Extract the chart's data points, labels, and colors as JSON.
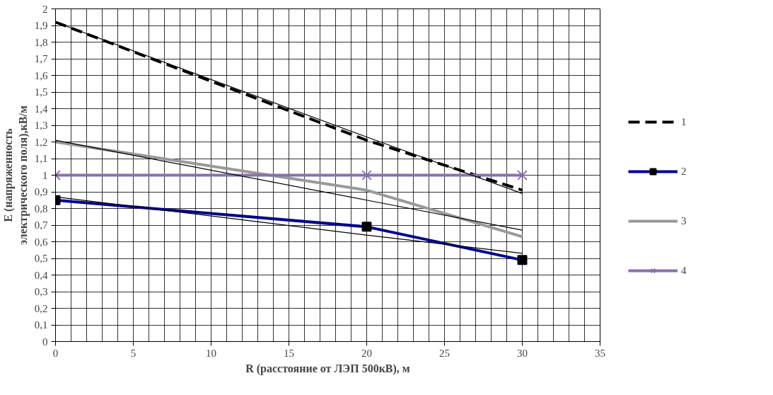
{
  "chart_data": {
    "type": "line",
    "xlabel": "R (расстояние от ЛЭП 500кВ), м",
    "ylabel": "E (напряженность  электрического поля),кВ/м",
    "x": [
      0,
      20,
      30
    ],
    "series": [
      {
        "name": "1",
        "color": "#000000",
        "values": [
          1.92,
          1.21,
          0.91
        ],
        "line_style": "dashed",
        "marker": "none"
      },
      {
        "name": "2",
        "color": "#00008b",
        "values": [
          0.85,
          0.69,
          0.49
        ],
        "line_style": "solid",
        "marker": "square"
      },
      {
        "name": "3",
        "color": "#999999",
        "values": [
          1.2,
          0.91,
          0.63
        ],
        "line_style": "solid",
        "marker": "none"
      },
      {
        "name": "4",
        "color": "#8a6fb0",
        "values": [
          1,
          1,
          1
        ],
        "line_style": "solid",
        "marker": "cross"
      },
      {
        "color": "#000000",
        "values": [
          1.92,
          1.23,
          0.89
        ],
        "line_style": "solid",
        "marker": "none"
      },
      {
        "color": "#000000",
        "values": [
          1.21,
          0.85,
          0.67
        ],
        "line_style": "solid",
        "marker": "none"
      },
      {
        "color": "#000000",
        "values": [
          0.87,
          0.64,
          0.53
        ],
        "line_style": "solid",
        "marker": "none"
      }
    ],
    "xlim": [
      0,
      35
    ],
    "xticks": [
      0,
      5,
      10,
      15,
      20,
      25,
      30,
      35
    ],
    "ylim": [
      0,
      2
    ],
    "yticks": [
      0,
      {
        "value": 0.1,
        "label": "0,1"
      },
      {
        "value": 0.2,
        "label": "0,2"
      },
      {
        "value": 0.3,
        "label": "0,3"
      },
      {
        "value": 0.4,
        "label": "0,4"
      },
      {
        "value": 0.5,
        "label": "0,5"
      },
      {
        "value": 0.6,
        "label": "0,6"
      },
      {
        "value": 0.7,
        "label": "0,7"
      },
      {
        "value": 0.8,
        "label": "0,8"
      },
      {
        "value": 0.9,
        "label": "0,9"
      },
      1,
      {
        "value": 1.1,
        "label": "1,1"
      },
      {
        "value": 1.2,
        "label": "1,2"
      },
      {
        "value": 1.3,
        "label": "1,3"
      },
      {
        "value": 1.4,
        "label": "1,4"
      },
      {
        "value": 1.5,
        "label": "1,5"
      },
      {
        "value": 1.6,
        "label": "1,6"
      },
      {
        "value": 1.7,
        "label": "1,7"
      },
      {
        "value": 1.8,
        "label": "1,8"
      },
      {
        "value": 1.9,
        "label": "1,9"
      },
      2
    ],
    "grid": true,
    "legend": "right"
  }
}
